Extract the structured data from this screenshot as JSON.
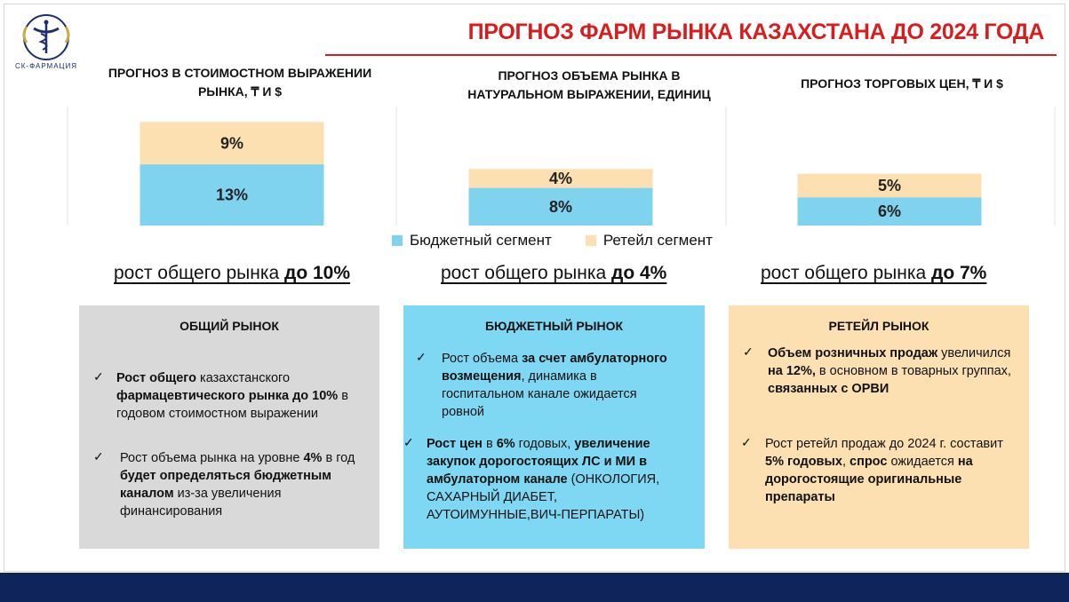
{
  "header": {
    "title": "ПРОГНОЗ ФАРМ РЫНКА КАЗАХСТАНА ДО 2024 ГОДА",
    "logo_text": "СК-ФАРМАЦИЯ",
    "accent_color": "#d71e1e"
  },
  "columns": [
    {
      "title_line1": "ПРОГНОЗ В СТОИМОСТНОМ ВЫРАЖЕНИИ",
      "title_line2": "РЫНКА, ₸ И $",
      "growth_text": "рост общего рынка ",
      "growth_bold": "до 10%"
    },
    {
      "title_line1": "ПРОГНОЗ ОБЪЕМА РЫНКА В",
      "title_line2": "НАТУРАЛЬНОМ ВЫРАЖЕНИИ, ЕДИНИЦ",
      "growth_text": "рост общего рынка ",
      "growth_bold": "до 4%"
    },
    {
      "title_line1": "ПРОГНОЗ ТОРГОВЫХ ЦЕН, ₸ И $",
      "title_line2": "",
      "growth_text": "рост общего рынка ",
      "growth_bold": "до 7%"
    }
  ],
  "chart_data": {
    "type": "bar",
    "stacked": true,
    "categories": [
      "ПРОГНОЗ В СТОИМОСТНОМ ВЫРАЖЕНИИ РЫНКА, ₸ И $",
      "ПРОГНОЗ ОБЪЕМА РЫНКА В НАТУРАЛЬНОМ ВЫРАЖЕНИИ, ЕДИНИЦ",
      "ПРОГНОЗ ТОРГОВЫХ ЦЕН, ₸ И $"
    ],
    "series": [
      {
        "name": "Бюджетный сегмент",
        "values": [
          13,
          8,
          6
        ],
        "labels": [
          "13%",
          "8%",
          "6%"
        ],
        "color": "#7fd3ee"
      },
      {
        "name": "Ретейл сегмент",
        "values": [
          9,
          4,
          5
        ],
        "labels": [
          "9%",
          "4%",
          "5%"
        ],
        "color": "#fde0b1"
      }
    ],
    "legend": "bottom-center"
  },
  "boxes": [
    {
      "title": "ОБЩИЙ РЫНОК",
      "color": "#d9d9d9",
      "items": [
        {
          "parts": [
            {
              "t": "Рост общего",
              "b": true
            },
            {
              "t": " казахстанского ",
              "b": false
            },
            {
              "t": "фармацевтического рынка до 10%",
              "b": true
            },
            {
              "t": " в годовом стоимостном выражении",
              "b": false
            }
          ]
        },
        {
          "parts": [
            {
              "t": "Рост объема рынка на уровне ",
              "b": false
            },
            {
              "t": "4%",
              "b": true
            },
            {
              "t": " в год ",
              "b": false
            },
            {
              "t": "будет определяться бюджетным каналом",
              "b": true
            },
            {
              "t": " из-за увеличения финансирования",
              "b": false
            }
          ]
        }
      ]
    },
    {
      "title": "БЮДЖЕТНЫЙ РЫНОК",
      "color": "#7fd8f3",
      "items": [
        {
          "parts": [
            {
              "t": "Рост объема ",
              "b": false
            },
            {
              "t": "за счет амбулаторного возмещения",
              "b": true
            },
            {
              "t": ", динамика в госпитальном канале ожидается ровной",
              "b": false
            }
          ]
        },
        {
          "parts": [
            {
              "t": "Рост цен",
              "b": true
            },
            {
              "t": " в ",
              "b": false
            },
            {
              "t": "6%",
              "b": true
            },
            {
              "t": " годовых, ",
              "b": false
            },
            {
              "t": "увеличение закупок дорогостоящих ЛС и МИ в амбулаторном канале",
              "b": true
            },
            {
              "t": " (ОНКОЛОГИЯ, САХАРНЫЙ ДИАБЕТ, АУТОИМУННЫЕ,ВИЧ-ПЕРПАРАТЫ)",
              "b": false
            }
          ]
        }
      ]
    },
    {
      "title": "РЕТЕЙЛ РЫНОК",
      "color": "#fde0b1",
      "items": [
        {
          "parts": [
            {
              "t": "Объем розничных продаж",
              "b": true
            },
            {
              "t": " увеличился ",
              "b": false
            },
            {
              "t": "на 12%,",
              "b": true
            },
            {
              "t": " в основном в товарных группах, ",
              "b": false
            },
            {
              "t": "связанных с ОРВИ",
              "b": true
            }
          ]
        },
        {
          "parts": [
            {
              "t": "Рост ретейл продаж до 2024 г. составит ",
              "b": false
            },
            {
              "t": "5% годовых",
              "b": true
            },
            {
              "t": ", ",
              "b": false
            },
            {
              "t": "спрос",
              "b": true
            },
            {
              "t": " ожидается ",
              "b": false
            },
            {
              "t": "на дорогостоящие оригинальные препараты",
              "b": true
            }
          ]
        }
      ]
    }
  ]
}
